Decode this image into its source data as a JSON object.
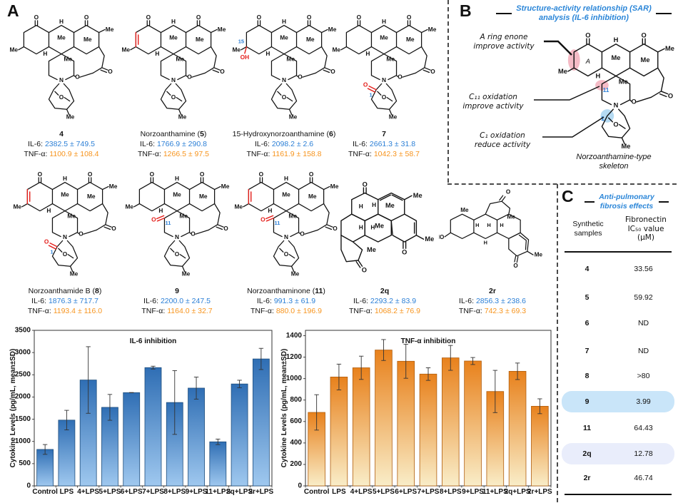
{
  "panelA": {
    "label": "A"
  },
  "labels": {
    "il6": "IL-6:",
    "tnf": "TNF-α:"
  },
  "compounds": [
    {
      "name_prefix": "",
      "name_bold": "4",
      "name_suffix": "",
      "il6": "2382.5 ± 749.5",
      "tnf": "1100.9 ± 108.4",
      "marks": []
    },
    {
      "name_prefix": "Norzoanthamine (",
      "name_bold": "5",
      "name_suffix": ")",
      "il6": "1766.9 ± 290.8",
      "tnf": "1266.5 ± 97.5",
      "marks": [
        "enone"
      ]
    },
    {
      "name_prefix": "15-Hydroxynorzoanthamine (",
      "name_bold": "6",
      "name_suffix": ")",
      "il6": "2098.2 ± 2.6",
      "tnf": "1161.9 ± 158.8",
      "marks": [
        "oh15"
      ]
    },
    {
      "name_prefix": "",
      "name_bold": "7",
      "name_suffix": "",
      "il6": "2661.3 ± 31.8",
      "tnf": "1042.3 ± 58.7",
      "marks": [
        "c1"
      ]
    },
    {
      "name_prefix": "Norzoanthamide B (",
      "name_bold": "8",
      "name_suffix": ")",
      "il6": "1876.3 ± 717.7",
      "tnf": "1193.4 ± 116.0",
      "marks": [
        "enone",
        "c1"
      ]
    },
    {
      "name_prefix": "",
      "name_bold": "9",
      "name_suffix": "",
      "il6": "2200.0 ± 247.5",
      "tnf": "1164.0 ± 32.7",
      "marks": [
        "c11"
      ]
    },
    {
      "name_prefix": "Norzoanthaminone (",
      "name_bold": "11",
      "name_suffix": ")",
      "il6": "991.3 ± 61.9",
      "tnf": "880.0 ± 196.9",
      "marks": [
        "enone",
        "c11"
      ]
    },
    {
      "name_prefix": "",
      "name_bold": "2q",
      "name_suffix": "",
      "il6": "2293.2 ± 83.9",
      "tnf": "1068.2 ± 76.9",
      "marks": []
    },
    {
      "name_prefix": "",
      "name_bold": "2r",
      "name_suffix": "",
      "il6": "2856.3 ± 238.6",
      "tnf": "742.3 ± 69.3",
      "marks": []
    }
  ],
  "panelB": {
    "label": "B",
    "title_line1": "Structure-activity relationship (SAR)",
    "title_line2": "analysis (IL-6 inhibition)",
    "annotations": [
      {
        "line1": "A ring enone",
        "line2": "improve activity"
      },
      {
        "line1": "C₁₁ oxidation",
        "line2": "improve activity"
      },
      {
        "line1": "C₁ oxidation",
        "line2": "reduce activity"
      }
    ],
    "ring_letter": "A",
    "pos11": "11",
    "pos1": "1",
    "caption_line1": "Norzoanthamine-type",
    "caption_line2": "skeleton",
    "accent_color": "#2b86d8",
    "highlight_pink": "#f3aab8",
    "highlight_blue": "#a8d3f0"
  },
  "panelC": {
    "label": "C",
    "title_line1": "Anti-pulmonary",
    "title_line2": "fibrosis effects",
    "col1_line1": "Synthetic",
    "col1_line2": "samples",
    "col2_line1": "Fibronectin",
    "col2_line2": "IC₅₀ value",
    "col2_line3": "(μM)",
    "rows": [
      {
        "sample": "4",
        "value": "33.56",
        "highlight": "none"
      },
      {
        "sample": "5",
        "value": "59.92",
        "highlight": "none"
      },
      {
        "sample": "6",
        "value": "ND",
        "highlight": "none"
      },
      {
        "sample": "7",
        "value": "ND",
        "highlight": "none"
      },
      {
        "sample": "8",
        "value": ">80",
        "highlight": "none"
      },
      {
        "sample": "9",
        "value": "3.99",
        "highlight": "strong"
      },
      {
        "sample": "11",
        "value": "64.43",
        "highlight": "none"
      },
      {
        "sample": "2q",
        "value": "12.78",
        "highlight": "light"
      },
      {
        "sample": "2r",
        "value": "46.74",
        "highlight": "none"
      }
    ]
  },
  "chart_data": [
    {
      "type": "bar",
      "title": "IL-6 inhibition",
      "ylabel": "Cytokine Levels (pg/mL, mean±SD)",
      "categories": [
        "Control",
        "LPS",
        "4+LPS",
        "5+LPS",
        "6+LPS",
        "7+LPS",
        "8+LPS",
        "9+LPS",
        "11+LPS",
        "2q+LPS",
        "2r+LPS"
      ],
      "values": [
        820,
        1480,
        2382.5,
        1766.9,
        2098.2,
        2661.3,
        1876.3,
        2200.0,
        991.3,
        2293.2,
        2856.3
      ],
      "errors": [
        110,
        220,
        749.5,
        290.8,
        2.6,
        31.8,
        717.7,
        247.5,
        61.9,
        83.9,
        238.6
      ],
      "ylim": [
        0,
        3500
      ],
      "ytick": 500,
      "legend": "none",
      "grid": "off",
      "bar_top_color": "#2f6eb4",
      "bar_bottom_color": "#9fc8ef",
      "bar_border": "#1f4e7d"
    },
    {
      "type": "bar",
      "title": "TNF-α inhibition",
      "ylabel": "Cytokine Levels (pg/mL, mean±SD)",
      "categories": [
        "Control",
        "LPS",
        "4+LPS",
        "5+LPS",
        "6+LPS",
        "7+LPS",
        "8+LPS",
        "9+LPS",
        "11+LPS",
        "2q+LPS",
        "2r+LPS"
      ],
      "values": [
        685,
        1015,
        1100.9,
        1266.5,
        1161.9,
        1042.3,
        1193.4,
        1164.0,
        880.0,
        1068.2,
        742.3
      ],
      "errors": [
        165,
        120,
        108.4,
        97.5,
        158.8,
        58.7,
        116.0,
        32.7,
        196.9,
        76.9,
        69.3
      ],
      "ylim": [
        0,
        1450
      ],
      "ytick": 200,
      "legend": "none",
      "grid": "off",
      "bar_top_color": "#e8811c",
      "bar_bottom_color": "#f9edc8",
      "bar_border": "#b05e0f"
    }
  ]
}
